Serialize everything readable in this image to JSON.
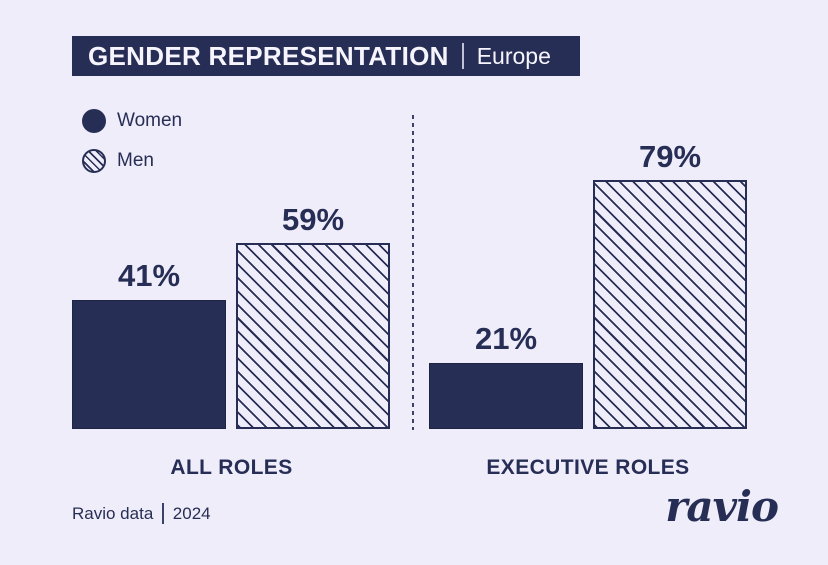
{
  "colors": {
    "navy": "#272e55",
    "background": "#f0edfa",
    "banner_text": "#f6f4fd"
  },
  "header": {
    "title": "GENDER REPRESENTATION",
    "separator": "|",
    "region": "Europe"
  },
  "legend": {
    "women_label": "Women",
    "men_label": "Men"
  },
  "footer": {
    "source": "Ravio data",
    "separator": "|",
    "year": "2024",
    "logo": "ravio"
  },
  "chart_data": {
    "type": "bar",
    "title": "GENDER REPRESENTATION",
    "subtitle": "Europe",
    "categories": [
      "ALL ROLES",
      "EXECUTIVE ROLES"
    ],
    "series": [
      {
        "name": "Women",
        "fill": "solid",
        "values": [
          41,
          21
        ]
      },
      {
        "name": "Men",
        "fill": "hatched",
        "values": [
          59,
          79
        ]
      }
    ],
    "bar_labels": [
      [
        "41%",
        "59%"
      ],
      [
        "21%",
        "79%"
      ]
    ],
    "unit": "%",
    "ylim": [
      0,
      100
    ],
    "grid": false,
    "legend_position": "top-left",
    "source": "Ravio data | 2024"
  }
}
